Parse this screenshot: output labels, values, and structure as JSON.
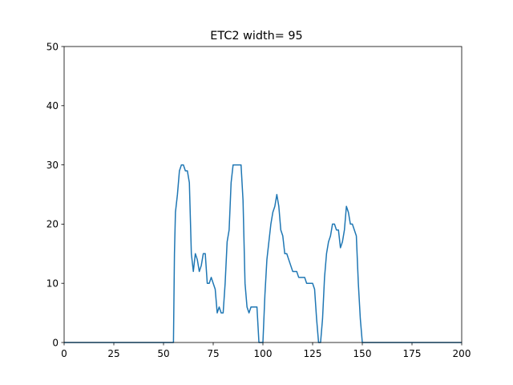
{
  "chart_data": {
    "type": "line",
    "title": "ETC2 width= 95",
    "xlabel": "",
    "ylabel": "",
    "xlim": [
      0,
      200
    ],
    "ylim": [
      0,
      50
    ],
    "xticks": [
      0,
      25,
      50,
      75,
      100,
      125,
      150,
      175,
      200
    ],
    "yticks": [
      0,
      10,
      20,
      30,
      40,
      50
    ],
    "grid": false,
    "series": [
      {
        "color": "#1f77b4",
        "x": [
          0,
          55,
          55.5,
          56,
          57,
          58,
          59,
          60,
          61,
          62,
          63,
          64,
          65,
          66,
          67,
          68,
          69,
          70,
          71,
          72,
          73,
          74,
          75,
          76,
          77,
          78,
          79,
          80,
          81,
          82,
          83,
          84,
          85,
          86,
          87,
          88,
          89,
          90,
          91,
          92,
          93,
          94,
          95,
          96,
          97,
          98,
          99,
          100,
          101,
          102,
          103,
          104,
          105,
          106,
          107,
          108,
          109,
          110,
          111,
          112,
          113,
          114,
          115,
          116,
          117,
          118,
          119,
          120,
          121,
          122,
          123,
          124,
          125,
          126,
          127,
          128,
          129,
          130,
          131,
          132,
          133,
          134,
          135,
          136,
          137,
          138,
          139,
          140,
          141,
          142,
          143,
          144,
          145,
          146,
          147,
          148,
          149,
          150,
          151,
          200
        ],
        "y": [
          0,
          0,
          15,
          22,
          25,
          29,
          30,
          30,
          29,
          29,
          27,
          15,
          12,
          15,
          14,
          12,
          13,
          15,
          15,
          10,
          10,
          11,
          10,
          9,
          5,
          6,
          5,
          5,
          10,
          17,
          19,
          27,
          30,
          30,
          30,
          30,
          30,
          24,
          10,
          6,
          5,
          6,
          6,
          6,
          6,
          0,
          0,
          0,
          8,
          14,
          17,
          20,
          22,
          23,
          25,
          23,
          19,
          18,
          15,
          15,
          14,
          13,
          12,
          12,
          12,
          11,
          11,
          11,
          11,
          10,
          10,
          10,
          10,
          9,
          4,
          0,
          0,
          4,
          11,
          15,
          17,
          18,
          20,
          20,
          19,
          19,
          16,
          17,
          19,
          23,
          22,
          20,
          20,
          19,
          18,
          10,
          4,
          0,
          0,
          0
        ]
      }
    ]
  }
}
